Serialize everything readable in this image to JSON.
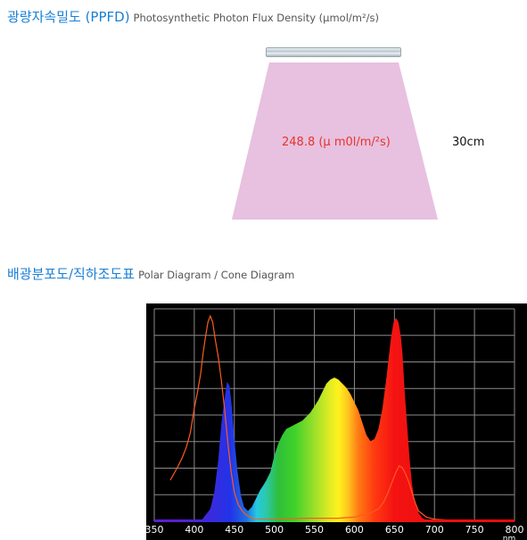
{
  "ppfd_section": {
    "title_ko": "광량자속밀도 (PPFD)",
    "title_en": "Photosynthetic Photon Flux Density (μmol/m²/s)",
    "value_text": "248.8 (μ m0l/m/²s)",
    "distance_text": "30cm",
    "cone_color": "#e7c1df"
  },
  "diagram_section": {
    "title_ko": "배광분포도/직하조도표",
    "title_en": "Polar Diagram  / Cone Diagram"
  },
  "chart_data": {
    "type": "area",
    "title": "",
    "xlabel": "",
    "x_unit_label": "nm",
    "ylabel": "",
    "xlim": [
      350,
      800
    ],
    "ylim": [
      0,
      1
    ],
    "x_ticks": [
      350,
      400,
      450,
      500,
      550,
      600,
      650,
      700,
      750,
      800
    ],
    "grid": true,
    "background": "#000000",
    "series": [
      {
        "style": "filled-spectrum",
        "x": [
          350,
          380,
          400,
          410,
          420,
          425,
          430,
          434,
          438,
          441,
          444,
          447,
          450,
          454,
          458,
          462,
          467,
          472,
          477,
          482,
          487,
          490,
          495,
          500,
          505,
          510,
          515,
          520,
          525,
          530,
          535,
          540,
          545,
          550,
          555,
          560,
          565,
          570,
          575,
          580,
          585,
          590,
          595,
          600,
          605,
          610,
          615,
          620,
          625,
          630,
          635,
          640,
          643,
          646,
          649,
          652,
          655,
          658,
          660,
          663,
          666,
          669,
          672,
          675,
          680,
          685,
          690,
          700,
          720,
          750,
          800
        ],
        "y": [
          0,
          0,
          0,
          0.01,
          0.06,
          0.14,
          0.3,
          0.48,
          0.6,
          0.68,
          0.66,
          0.55,
          0.4,
          0.24,
          0.13,
          0.07,
          0.05,
          0.07,
          0.11,
          0.15,
          0.18,
          0.2,
          0.24,
          0.32,
          0.38,
          0.42,
          0.45,
          0.46,
          0.47,
          0.48,
          0.49,
          0.51,
          0.53,
          0.56,
          0.59,
          0.63,
          0.67,
          0.69,
          0.7,
          0.69,
          0.67,
          0.65,
          0.62,
          0.58,
          0.54,
          0.48,
          0.42,
          0.39,
          0.4,
          0.45,
          0.55,
          0.7,
          0.8,
          0.9,
          0.97,
          0.99,
          0.97,
          0.9,
          0.82,
          0.62,
          0.46,
          0.3,
          0.18,
          0.1,
          0.04,
          0.015,
          0.005,
          0,
          0,
          0,
          0
        ]
      },
      {
        "style": "line",
        "color": "#ff5a1f",
        "x": [
          370,
          380,
          385,
          390,
          395,
          400,
          404,
          408,
          411,
          414,
          417,
          420,
          423,
          426,
          430,
          434,
          438,
          442,
          446,
          450,
          455,
          460,
          465,
          470,
          475,
          480,
          490,
          500,
          520,
          540,
          560,
          580,
          600,
          620,
          630,
          636,
          642,
          648,
          652,
          656,
          660,
          664,
          668,
          672,
          676,
          680,
          690,
          700,
          720,
          750,
          800
        ],
        "y": [
          0.2,
          0.27,
          0.31,
          0.36,
          0.43,
          0.55,
          0.63,
          0.72,
          0.82,
          0.9,
          0.97,
          1.0,
          0.97,
          0.89,
          0.8,
          0.68,
          0.54,
          0.38,
          0.24,
          0.14,
          0.08,
          0.05,
          0.03,
          0.02,
          0.01,
          0.01,
          0.01,
          0.01,
          0.012,
          0.015,
          0.015,
          0.015,
          0.02,
          0.04,
          0.06,
          0.09,
          0.14,
          0.2,
          0.24,
          0.27,
          0.26,
          0.23,
          0.19,
          0.14,
          0.09,
          0.05,
          0.02,
          0.01,
          0.005,
          0,
          0
        ]
      }
    ]
  }
}
